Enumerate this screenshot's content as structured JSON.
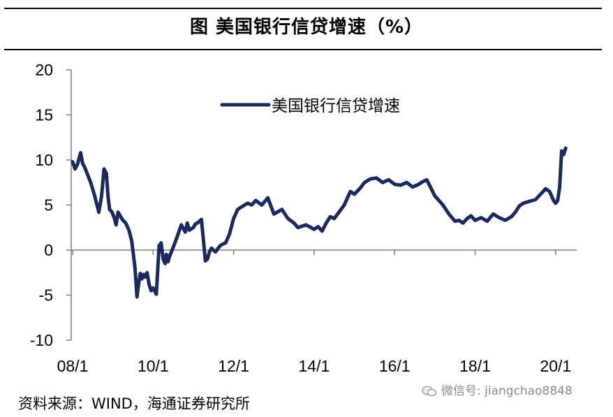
{
  "header": {
    "title": "图 美国银行信贷增速（%）"
  },
  "footer": {
    "source": "资料来源：WIND，海通证券研究所"
  },
  "watermark": {
    "text": "微信号: jiangchao8848",
    "icon": "wechat-icon"
  },
  "colors": {
    "series": "#1a2a5e",
    "axis": "#7f7f7f"
  },
  "chart_data": {
    "type": "line",
    "title": "",
    "xlabel": "",
    "ylabel": "",
    "ylim": [
      -10,
      20
    ],
    "yticks": [
      "20",
      "15",
      "10",
      "5",
      "0",
      "-5",
      "-10"
    ],
    "xlim": [
      2008.0,
      2020.3
    ],
    "xticks": [
      {
        "label": "08/1",
        "value": 2008.0
      },
      {
        "label": "10/1",
        "value": 2010.0
      },
      {
        "label": "12/1",
        "value": 2012.0
      },
      {
        "label": "14/1",
        "value": 2014.0
      },
      {
        "label": "16/1",
        "value": 2016.0
      },
      {
        "label": "18/1",
        "value": 2018.0
      },
      {
        "label": "20/1",
        "value": 2020.0
      }
    ],
    "grid": false,
    "legend": "top-center",
    "series": [
      {
        "name": "美国银行信贷增速",
        "x": [
          2008.0,
          2008.06,
          2008.12,
          2008.2,
          2008.25,
          2008.3,
          2008.36,
          2008.45,
          2008.55,
          2008.65,
          2008.72,
          2008.78,
          2008.84,
          2008.88,
          2008.92,
          2008.98,
          2009.04,
          2009.08,
          2009.13,
          2009.18,
          2009.25,
          2009.32,
          2009.4,
          2009.47,
          2009.55,
          2009.6,
          2009.64,
          2009.68,
          2009.72,
          2009.76,
          2009.8,
          2009.85,
          2009.9,
          2009.95,
          2010.0,
          2010.08,
          2010.15,
          2010.2,
          2010.25,
          2010.3,
          2010.33,
          2010.37,
          2010.4,
          2010.5,
          2010.6,
          2010.7,
          2010.8,
          2010.85,
          2010.9,
          2011.0,
          2011.05,
          2011.1,
          2011.2,
          2011.3,
          2011.35,
          2011.4,
          2011.45,
          2011.55,
          2011.65,
          2011.7,
          2011.8,
          2011.9,
          2012.0,
          2012.1,
          2012.2,
          2012.35,
          2012.45,
          2012.55,
          2012.7,
          2012.85,
          2013.0,
          2013.2,
          2013.35,
          2013.5,
          2013.6,
          2013.8,
          2014.0,
          2014.1,
          2014.2,
          2014.3,
          2014.4,
          2014.5,
          2014.6,
          2014.75,
          2014.9,
          2015.0,
          2015.15,
          2015.25,
          2015.4,
          2015.55,
          2015.7,
          2015.85,
          2016.0,
          2016.15,
          2016.3,
          2016.45,
          2016.6,
          2016.7,
          2016.8,
          2017.0,
          2017.2,
          2017.35,
          2017.5,
          2017.6,
          2017.7,
          2017.8,
          2017.9,
          2018.0,
          2018.15,
          2018.3,
          2018.45,
          2018.6,
          2018.75,
          2018.9,
          2019.0,
          2019.1,
          2019.2,
          2019.35,
          2019.5,
          2019.65,
          2019.75,
          2019.85,
          2019.95,
          2020.0,
          2020.05,
          2020.1,
          2020.15,
          2020.2,
          2020.25
        ],
        "y": [
          9.8,
          9.0,
          9.5,
          10.8,
          9.6,
          9.2,
          8.5,
          7.5,
          6.0,
          4.2,
          6.0,
          9.0,
          8.5,
          6.0,
          4.5,
          4.2,
          3.5,
          2.8,
          4.2,
          3.8,
          3.3,
          3.0,
          2.2,
          1.0,
          -2.0,
          -5.2,
          -3.8,
          -2.6,
          -3.2,
          -2.7,
          -3.0,
          -2.5,
          -3.8,
          -4.5,
          -4.2,
          -4.9,
          0.5,
          0.8,
          -1.0,
          -1.5,
          -0.5,
          -1.3,
          -0.8,
          0.3,
          1.5,
          2.8,
          2.0,
          3.0,
          2.2,
          2.5,
          2.9,
          3.0,
          3.4,
          -1.2,
          -1.0,
          -0.2,
          0.2,
          -0.2,
          0.4,
          0.6,
          0.8,
          1.8,
          3.5,
          4.5,
          4.8,
          5.2,
          5.0,
          5.5,
          5.0,
          5.8,
          4.0,
          4.5,
          3.5,
          3.0,
          2.5,
          2.8,
          2.3,
          2.6,
          2.1,
          3.0,
          3.7,
          3.5,
          4.1,
          5.0,
          6.5,
          6.2,
          6.9,
          7.5,
          7.9,
          8.0,
          7.5,
          7.8,
          7.3,
          7.2,
          7.5,
          7.0,
          7.3,
          7.6,
          7.8,
          6.0,
          5.0,
          4.0,
          3.2,
          3.3,
          3.0,
          3.5,
          3.8,
          3.3,
          3.6,
          3.2,
          4.0,
          3.6,
          3.3,
          3.7,
          4.2,
          4.9,
          5.2,
          5.4,
          5.6,
          6.3,
          6.8,
          6.5,
          5.5,
          5.2,
          5.5,
          7.0,
          11.0,
          10.6,
          11.3
        ]
      }
    ]
  }
}
